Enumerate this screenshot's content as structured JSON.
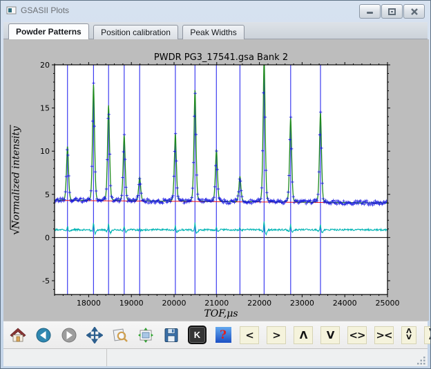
{
  "window": {
    "title": "GSASII Plots",
    "controls": [
      "minimize-icon",
      "maximize-icon",
      "close-icon"
    ]
  },
  "tabs": [
    {
      "label": "Powder Patterns",
      "active": true
    },
    {
      "label": "Position calibration",
      "active": false
    },
    {
      "label": "Peak Widths",
      "active": false
    }
  ],
  "toolbar": {
    "items": [
      {
        "name": "home-button",
        "icon": "home-icon"
      },
      {
        "name": "back-button",
        "icon": "back-icon"
      },
      {
        "name": "forward-button",
        "icon": "forward-icon"
      },
      {
        "name": "pan-button",
        "icon": "pan-arrows-icon"
      },
      {
        "name": "zoom-rect-button",
        "icon": "zoom-magnifier-icon"
      },
      {
        "name": "subplots-button",
        "icon": "subplots-icon"
      },
      {
        "name": "save-button",
        "icon": "floppy-disk-icon"
      },
      {
        "name": "key-press-button",
        "glyph": "K"
      },
      {
        "name": "help-button",
        "glyph": "?"
      },
      {
        "name": "shift-left-button",
        "glyph": "<"
      },
      {
        "name": "shift-right-button",
        "glyph": ">"
      },
      {
        "name": "shift-up-button",
        "glyph": "Λ"
      },
      {
        "name": "shift-down-button",
        "glyph": "V"
      },
      {
        "name": "expand-x-button",
        "glyph": "<>"
      },
      {
        "name": "contract-x-button",
        "glyph": "><"
      },
      {
        "name": "expand-y-button",
        "glyph_top": "Λ",
        "glyph_bottom": "V"
      },
      {
        "name": "contract-y-button",
        "glyph_top": "V",
        "glyph_bottom": "Λ"
      }
    ]
  },
  "statusbar": {
    "field1": "",
    "field2": ""
  },
  "chart_data": {
    "type": "line",
    "title": "PWDR PG3_17541.gsa Bank 2",
    "xlabel": "TOF,μs",
    "ylabel_radical": "√",
    "ylabel_text": "Normalized intensity",
    "xlim": [
      17200,
      25000
    ],
    "ylim": [
      -6.6,
      20
    ],
    "xticks": [
      18000,
      19000,
      20000,
      21000,
      22000,
      23000,
      24000,
      25000
    ],
    "yticks": [
      -5,
      0,
      5,
      10,
      15,
      20
    ],
    "x_minor_step": 200,
    "y_minor_step": 1,
    "grid": false,
    "legend": "none",
    "background_line": {
      "start": 4.3,
      "end": 4.0
    },
    "difference_baseline": 0.9,
    "zero_line": 0,
    "reflections": [
      17503,
      18113,
      18465,
      18831,
      19194,
      20030,
      20490,
      20992,
      21543,
      22110,
      22731,
      23430
    ],
    "peaks": [
      {
        "center": 17503,
        "height": 10.4
      },
      {
        "center": 18113,
        "height": 17.6
      },
      {
        "center": 18465,
        "height": 15.2
      },
      {
        "center": 18831,
        "height": 11.8
      },
      {
        "center": 19194,
        "height": 6.9
      },
      {
        "center": 20030,
        "height": 12.0
      },
      {
        "center": 20490,
        "height": 17.1
      },
      {
        "center": 20992,
        "height": 10.2
      },
      {
        "center": 21543,
        "height": 7.1
      },
      {
        "center": 22110,
        "height": 20.8
      },
      {
        "center": 22731,
        "height": 14.0
      },
      {
        "center": 23430,
        "height": 14.6
      }
    ],
    "series_legend": {
      "observed": "blue + markers",
      "calculated": "green line",
      "background": "red line",
      "difference": "cyan line",
      "reflection_positions": "blue vertical lines"
    },
    "colors": {
      "observed": "#1414e0",
      "calculated": "#1f8a1f",
      "background": "#ee1111",
      "difference": "#00b4b4",
      "reflections": "#3c3cf0",
      "zero_line": "#000000",
      "figure_bg": "#bdbdbd",
      "axes_bg": "#ffffff"
    }
  }
}
